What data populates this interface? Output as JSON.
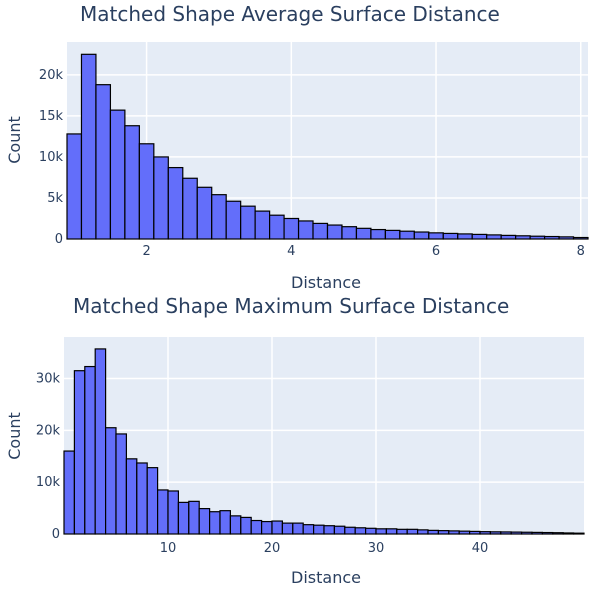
{
  "chart_data": [
    {
      "type": "bar",
      "title": "Matched Shape Average Surface Distance",
      "xlabel": "Distance",
      "ylabel": "Count",
      "xlim": [
        0.9,
        8.1
      ],
      "ylim": [
        0,
        24000
      ],
      "bin_start": 0.9,
      "bin_width": 0.2,
      "x_ticks": [
        2,
        4,
        6,
        8
      ],
      "x_tick_labels": [
        "2",
        "4",
        "6",
        "8"
      ],
      "y_ticks": [
        0,
        5000,
        10000,
        15000,
        20000
      ],
      "y_tick_labels": [
        "0",
        "5k",
        "10k",
        "15k",
        "20k"
      ],
      "grid": true,
      "color": "#636efa",
      "values": [
        12800,
        22500,
        18800,
        15700,
        13800,
        11600,
        10000,
        8700,
        7400,
        6300,
        5400,
        4600,
        4000,
        3400,
        2900,
        2500,
        2200,
        1900,
        1700,
        1500,
        1300,
        1150,
        1050,
        950,
        850,
        750,
        680,
        620,
        560,
        500,
        440,
        390,
        340,
        300,
        260,
        180
      ]
    },
    {
      "type": "bar",
      "title": "Matched Shape Maximum Surface Distance",
      "xlabel": "Distance",
      "ylabel": "Count",
      "xlim": [
        0,
        50
      ],
      "ylim": [
        0,
        38000
      ],
      "bin_start": 0,
      "bin_width": 1,
      "x_ticks": [
        10,
        20,
        30,
        40
      ],
      "x_tick_labels": [
        "10",
        "20",
        "30",
        "40"
      ],
      "y_ticks": [
        0,
        10000,
        20000,
        30000
      ],
      "y_tick_labels": [
        "0",
        "10k",
        "20k",
        "30k"
      ],
      "grid": true,
      "color": "#636efa",
      "values": [
        16000,
        31500,
        32300,
        35700,
        20500,
        19300,
        14500,
        13700,
        12800,
        8500,
        8300,
        6100,
        6300,
        4900,
        4300,
        4500,
        3500,
        3200,
        2600,
        2400,
        2500,
        2100,
        2100,
        1800,
        1700,
        1600,
        1500,
        1300,
        1200,
        1100,
        1000,
        1000,
        900,
        900,
        800,
        700,
        650,
        600,
        550,
        500,
        450,
        420,
        400,
        370,
        340,
        310,
        280,
        250,
        200,
        160
      ]
    }
  ]
}
